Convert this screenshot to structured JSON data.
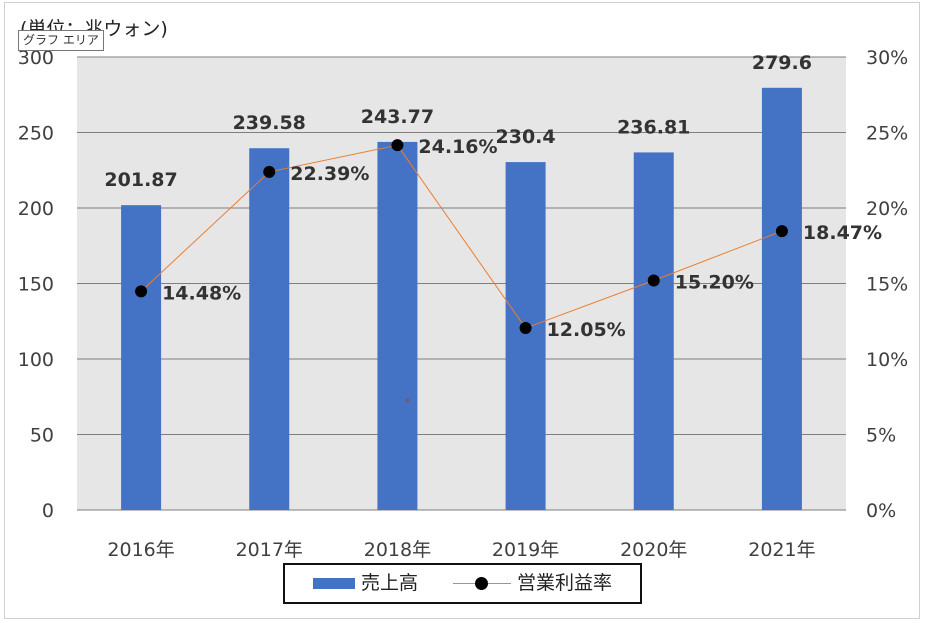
{
  "unit_label": "(単位：兆ウォン)",
  "tooltip": "グラフ エリア",
  "cursor_glyph": "*",
  "chart_data": {
    "type": "bar",
    "title": "",
    "categories": [
      "2016年",
      "2017年",
      "2018年",
      "2019年",
      "2020年",
      "2021年"
    ],
    "series": [
      {
        "name": "売上高",
        "type": "bar",
        "axis": "left",
        "color": "#4472c4",
        "values": [
          201.87,
          239.58,
          243.77,
          230.4,
          236.81,
          279.6
        ],
        "labels": [
          "201.87",
          "239.58",
          "243.77",
          "230.4",
          "236.81",
          "279.6"
        ]
      },
      {
        "name": "営業利益率",
        "type": "line",
        "axis": "right",
        "color": "#ed7d31",
        "marker_color": "#000000",
        "values": [
          14.48,
          22.39,
          24.16,
          12.05,
          15.2,
          18.47
        ],
        "labels": [
          "14.48%",
          "22.39%",
          "24.16%",
          "12.05%",
          "15.20%",
          "18.47%"
        ]
      }
    ],
    "y_left": {
      "min": 0,
      "max": 300,
      "ticks": [
        "0",
        "50",
        "100",
        "150",
        "200",
        "250",
        "300"
      ]
    },
    "y_right": {
      "min": 0,
      "max": 30,
      "ticks": [
        "0%",
        "5%",
        "10%",
        "15%",
        "20%",
        "25%",
        "30%"
      ]
    },
    "plot_background": "#e7e6e6",
    "gridlines": true,
    "legend_position": "bottom"
  }
}
